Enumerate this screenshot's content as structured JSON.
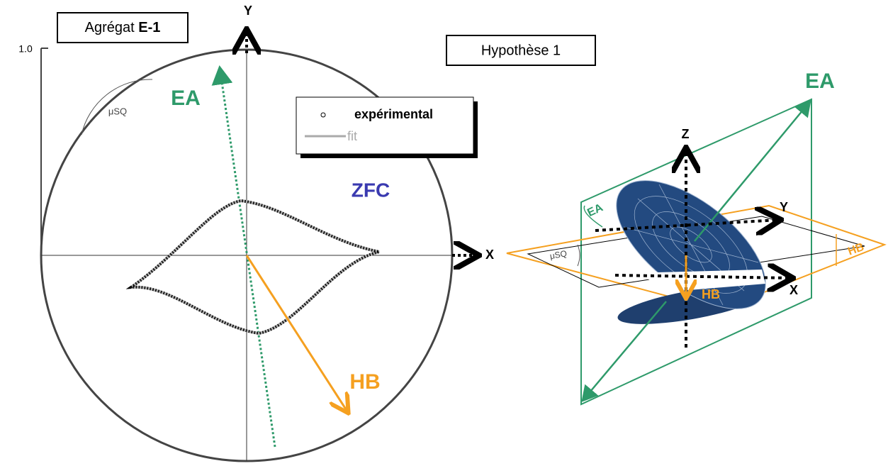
{
  "left_panel": {
    "title": "Agrégat",
    "title_bold": "E-1",
    "axis_value": "1.0",
    "y_axis": "Y",
    "x_axis": "X",
    "easy_axis": "EA",
    "angle": "μSQ",
    "legend": {
      "experimental": "expérimental",
      "fit": "fit"
    },
    "condition": "ZFC",
    "field": "HB"
  },
  "right_panel": {
    "title": "Hypothèse 1",
    "easy_axis": "EA",
    "z_axis": "Z",
    "y_axis": "Y",
    "x_axis": "X",
    "easy_axis_plane": "EA",
    "field_plane": "HB",
    "angle": "μSQ",
    "field": "HB"
  }
}
